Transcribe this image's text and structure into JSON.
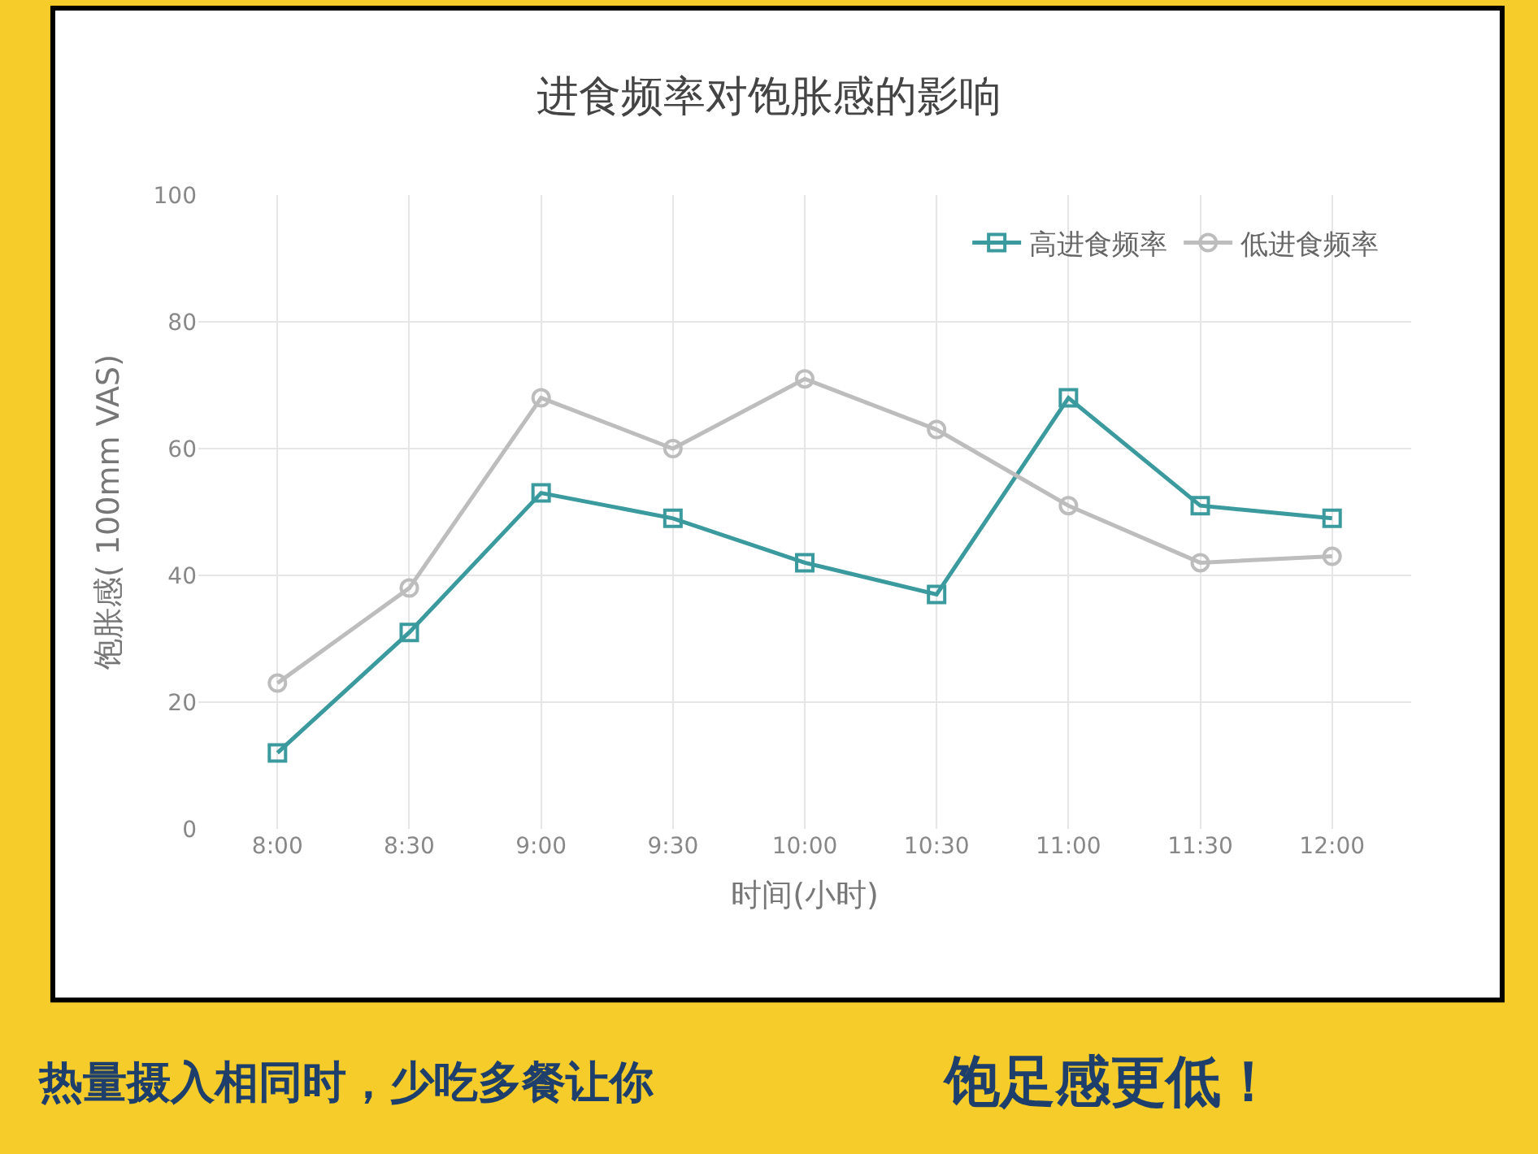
{
  "chart_data": {
    "type": "line",
    "title": "进食频率对饱胀感的影响",
    "xlabel": "时间(小时)",
    "ylabel": "饱胀感( 100mm VAS)",
    "categories": [
      "8:00",
      "8:30",
      "9:00",
      "9:30",
      "10:00",
      "10:30",
      "11:00",
      "11:30",
      "12:00"
    ],
    "series": [
      {
        "name": "高进食频率",
        "color": "#3a9a9e",
        "marker": "square",
        "values": [
          12,
          31,
          53,
          49,
          42,
          37,
          68,
          51,
          49
        ]
      },
      {
        "name": "低进食频率",
        "color": "#bdbdbd",
        "marker": "circle",
        "values": [
          23,
          38,
          68,
          60,
          71,
          63,
          51,
          42,
          43
        ]
      }
    ],
    "ylim": [
      0,
      100
    ],
    "yticks": [
      0,
      20,
      40,
      60,
      80,
      100
    ],
    "grid": true,
    "legend": "top right",
    "line_style": "solid",
    "annotations": [
      "热量摄入相同时，少吃多餐让你",
      "饱足感更低！"
    ]
  }
}
